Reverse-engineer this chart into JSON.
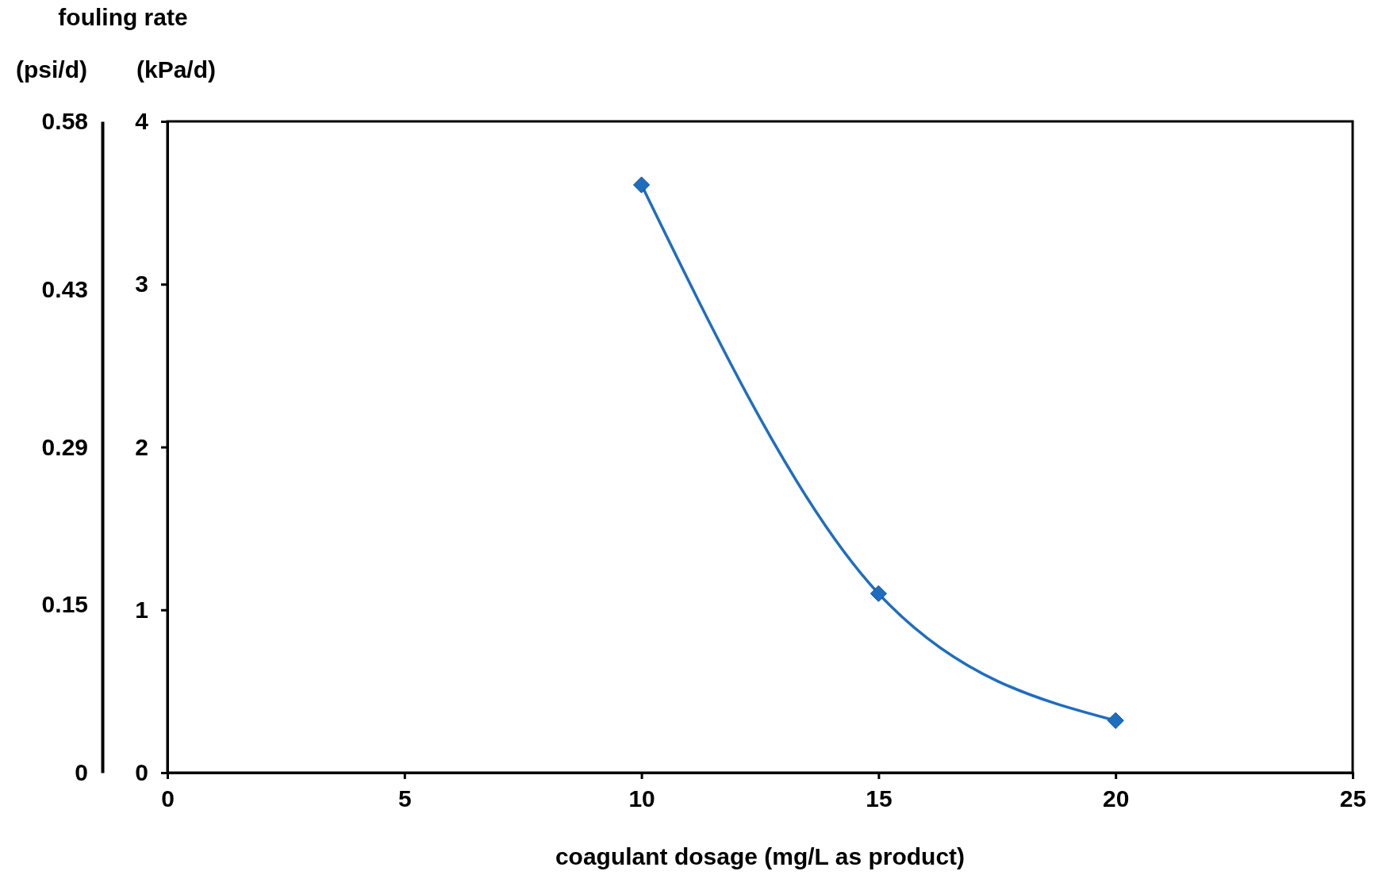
{
  "chart_data": {
    "type": "line",
    "title": "fouling rate",
    "ylabel": "(kPa/d)",
    "y2label": "(psi/d)",
    "xlabel": "coagulant dosage (mg/L as product)",
    "x": [
      10,
      15,
      20
    ],
    "series": [
      {
        "color": "#1f6dbf",
        "values": [
          3.61,
          1.1,
          0.32
        ]
      }
    ],
    "xlim": [
      0,
      25
    ],
    "xticks": [
      0,
      5,
      10,
      15,
      20,
      25
    ],
    "ylim": [
      0,
      4
    ],
    "yticks": [
      0,
      1,
      2,
      3,
      4
    ],
    "y2lim": [
      0,
      0.58
    ],
    "y2ticks": [
      0,
      0.15,
      0.29,
      0.43,
      0.58
    ],
    "marker": "diamond",
    "line_style": "solid",
    "grid": false
  }
}
